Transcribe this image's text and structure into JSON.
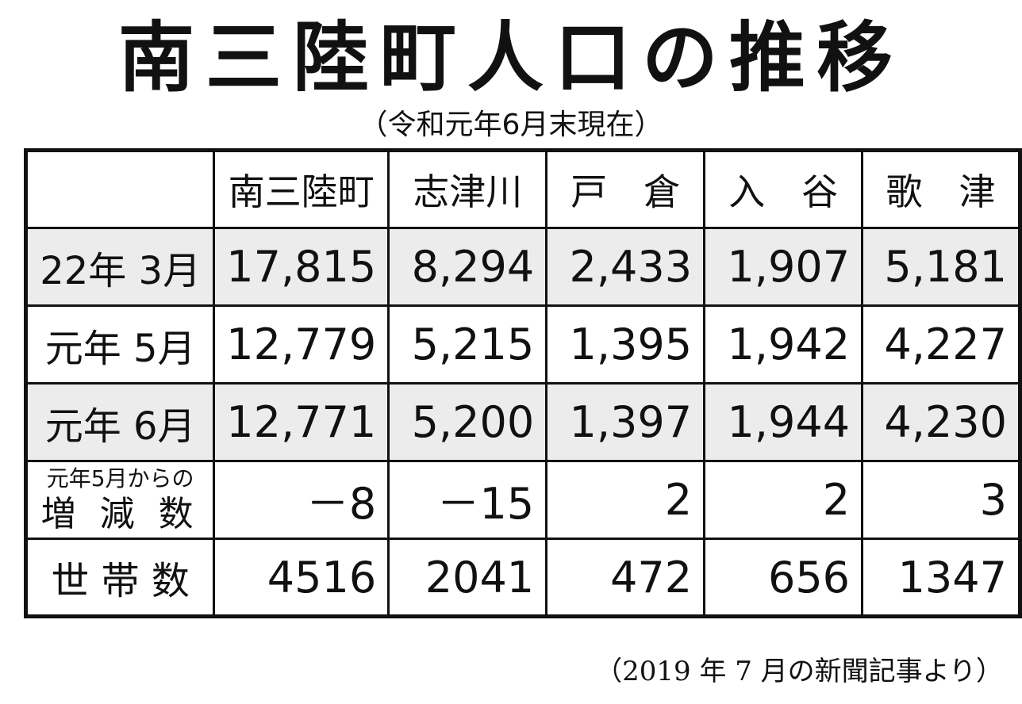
{
  "header": {
    "title": "南三陸町人口の推移",
    "subtitle": "（令和元年6月末現在）"
  },
  "table": {
    "columns": [
      "南三陸町",
      "志津川",
      "戸　倉",
      "入　谷",
      "歌　津"
    ],
    "rows": [
      {
        "label": [
          "22年 3月"
        ],
        "cells": [
          "17,815",
          "8,294",
          "2,433",
          "1,907",
          "5,181"
        ]
      },
      {
        "label": [
          "元年 5月"
        ],
        "cells": [
          "12,779",
          "5,215",
          "1,395",
          "1,942",
          "4,227"
        ]
      },
      {
        "label": [
          "元年 6月"
        ],
        "cells": [
          "12,771",
          "5,200",
          "1,397",
          "1,944",
          "4,230"
        ]
      },
      {
        "label": [
          "元年5月からの",
          "増 減 数"
        ],
        "cells": [
          "－8",
          "－15",
          "2",
          "2",
          "3"
        ]
      },
      {
        "label": [
          "世 帯 数"
        ],
        "cells": [
          "4516",
          "2041",
          "472",
          "656",
          "1347"
        ]
      }
    ]
  },
  "footer": {
    "note": "（2019 年 7 月の新聞記事より）"
  }
}
